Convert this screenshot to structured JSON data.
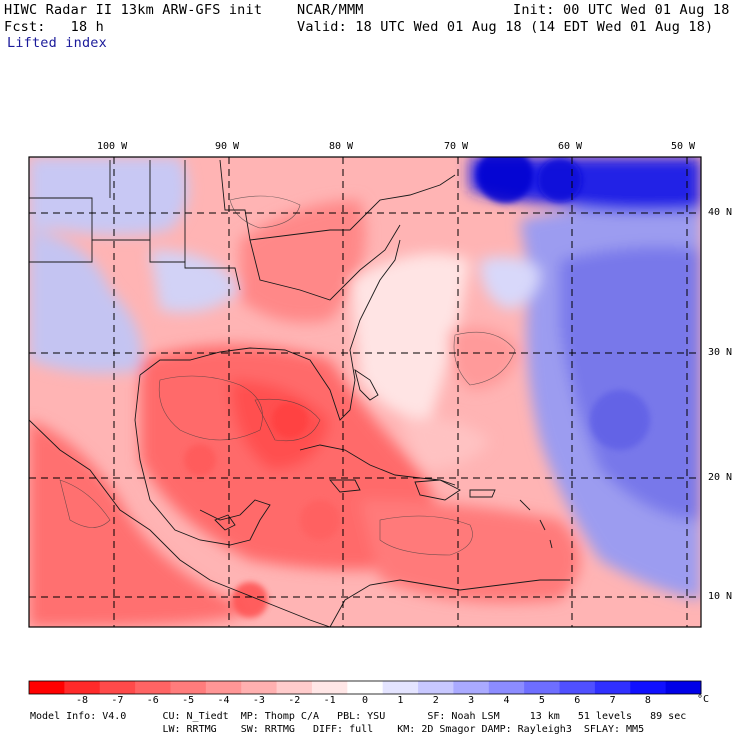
{
  "header": {
    "title": "HIWC Radar II 13km ARW-GFS init",
    "org": "NCAR/MMM",
    "init": "Init: 00 UTC Wed 01 Aug 18",
    "fcst": "Fcst:   18 h",
    "valid": "Valid: 18 UTC Wed 01 Aug 18 (14 EDT Wed 01 Aug 18)",
    "field": "Lifted index"
  },
  "map": {
    "lon_labels": [
      "100 W",
      "90 W",
      "80 W",
      "70 W",
      "60 W",
      "50 W"
    ],
    "lat_labels": [
      "40 N",
      "30 N",
      "20 N",
      "10 N"
    ],
    "gridline_style": "dashed",
    "lon_range_deg": [
      -107.5,
      -49.5
    ],
    "lat_range_deg": [
      8.0,
      44.5
    ]
  },
  "colorbar": {
    "ticks": [
      "-8",
      "-7",
      "-6",
      "-5",
      "-4",
      "-3",
      "-2",
      "-1",
      "0",
      "1",
      "2",
      "3",
      "4",
      "5",
      "6",
      "7",
      "8"
    ],
    "unit": "°C",
    "colors": [
      "#ff0000",
      "#ff2a2a",
      "#ff4a4a",
      "#ff6464",
      "#ff7c7c",
      "#ff9696",
      "#ffb0b0",
      "#ffcccc",
      "#ffe6e6",
      "#ffffff",
      "#e4e4ff",
      "#c8c8ff",
      "#aaaaff",
      "#8c8cff",
      "#6e6eff",
      "#5050ff",
      "#3030ff",
      "#1010ff",
      "#0000e8"
    ]
  },
  "model_info": {
    "line1": "Model Info: V4.0      CU: N_Tiedt  MP: Thomp C/A   PBL: YSU       SF: Noah LSM     13 km   51 levels   89 sec",
    "line2": "                      LW: RRTMG    SW: RRTMG   DIFF: full    KM: 2D Smagor DAMP: Rayleigh3  SFLAY: MM5"
  }
}
